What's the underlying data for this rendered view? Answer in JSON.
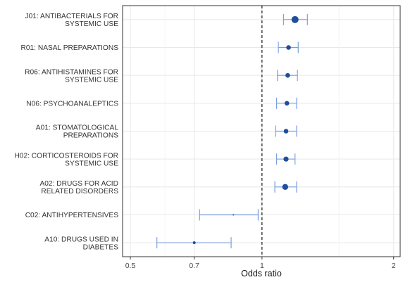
{
  "chart_data": {
    "type": "forest",
    "xlabel": "Odds ratio",
    "x_scale": "log",
    "xlim": [
      0.48,
      2.07
    ],
    "x_ticks": [
      0.5,
      0.7,
      1,
      2
    ],
    "x_tick_labels": [
      "0.5",
      "0.7",
      "1",
      "2"
    ],
    "minor_gridlines": [
      0.6,
      1.5
    ],
    "reference_line": 1,
    "grid": true,
    "colors": {
      "point": "#1f4e9c",
      "ci": "#7b9fe0",
      "grid": "#e8e8e8",
      "reference": "#000000"
    },
    "rows": [
      {
        "label_lines": [
          "J01: ANTIBACTERIALS FOR",
          "SYSTEMIC USE"
        ],
        "or": 1.19,
        "lower": 1.12,
        "upper": 1.27,
        "size": 5
      },
      {
        "label_lines": [
          "R01: NASAL PREPARATIONS"
        ],
        "or": 1.15,
        "lower": 1.09,
        "upper": 1.21,
        "size": 3.3
      },
      {
        "label_lines": [
          "R06: ANTIHISTAMINES FOR",
          "SYSTEMIC USE"
        ],
        "or": 1.145,
        "lower": 1.085,
        "upper": 1.205,
        "size": 3.3
      },
      {
        "label_lines": [
          "N06: PSYCHOANALEPTICS"
        ],
        "or": 1.14,
        "lower": 1.08,
        "upper": 1.2,
        "size": 3.3
      },
      {
        "label_lines": [
          "A01: STOMATOLOGICAL",
          "PREPARATIONS"
        ],
        "or": 1.135,
        "lower": 1.075,
        "upper": 1.2,
        "size": 3.3
      },
      {
        "label_lines": [
          "H02: CORTICOSTEROIDS FOR",
          "SYSTEMIC USE"
        ],
        "or": 1.135,
        "lower": 1.08,
        "upper": 1.19,
        "size": 3.6
      },
      {
        "label_lines": [
          "A02: DRUGS FOR ACID",
          "RELATED DISORDERS"
        ],
        "or": 1.13,
        "lower": 1.07,
        "upper": 1.2,
        "size": 4.2
      },
      {
        "label_lines": [
          "C02: ANTIHYPERTENSIVES"
        ],
        "or": 0.86,
        "lower": 0.72,
        "upper": 0.98,
        "size": 1
      },
      {
        "label_lines": [
          "A10: DRUGS USED IN",
          "DIABETES"
        ],
        "or": 0.7,
        "lower": 0.575,
        "upper": 0.85,
        "size": 2
      }
    ]
  }
}
